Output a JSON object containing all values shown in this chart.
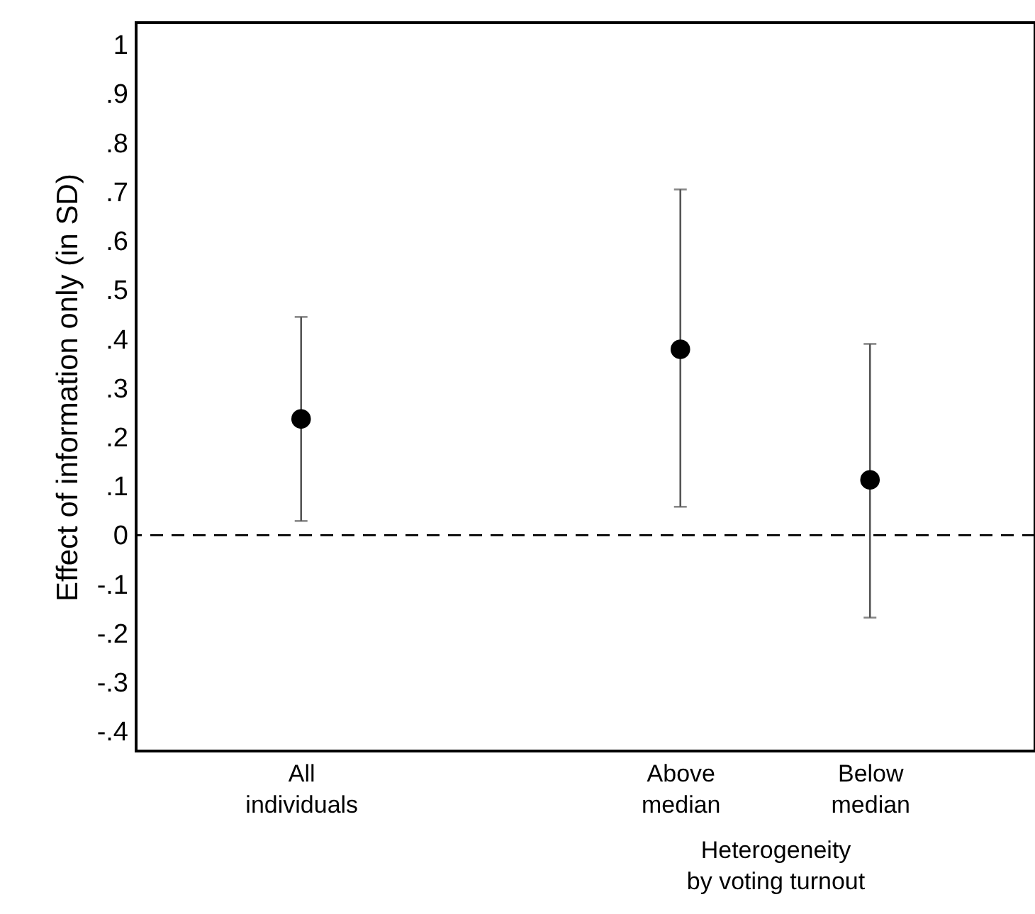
{
  "chart_data": {
    "type": "scatter",
    "ylabel": "Effect of information only (in SD)",
    "xlabel": "Heterogeneity\nby voting turnout",
    "categories": [
      "All\nindividuals",
      null,
      "Above\nmedian",
      "Below\nmedian"
    ],
    "ylim": [
      -0.44,
      1.045
    ],
    "yticks": [
      1,
      {
        "value": 0.9,
        "label": ".9"
      },
      {
        "value": 0.8,
        "label": ".8"
      },
      {
        "value": 0.7,
        "label": ".7"
      },
      {
        "value": 0.6,
        "label": ".6"
      },
      {
        "value": 0.5,
        "label": ".5"
      },
      {
        "value": 0.4,
        "label": ".4"
      },
      {
        "value": 0.3,
        "label": ".3"
      },
      {
        "value": 0.2,
        "label": ".2"
      },
      {
        "value": 0.1,
        "label": ".1"
      },
      0,
      {
        "value": -0.1,
        "label": "-.1"
      },
      {
        "value": -0.2,
        "label": "-.2"
      },
      {
        "value": -0.3,
        "label": "-.3"
      },
      {
        "value": -0.4,
        "label": "-.4"
      }
    ],
    "series": [
      {
        "color": "#000000",
        "values": [
          0.237,
          null,
          0.379,
          0.113
        ],
        "errors": [
          [
            0.029,
            0.445
          ],
          null,
          [
            0.058,
            0.705
          ],
          [
            -0.168,
            0.39
          ]
        ]
      }
    ],
    "marker": "circle",
    "ref_lines": [
      {
        "axis": "y",
        "value": 0,
        "line_style": "dashed",
        "color": "#000000"
      }
    ],
    "grid": false
  }
}
